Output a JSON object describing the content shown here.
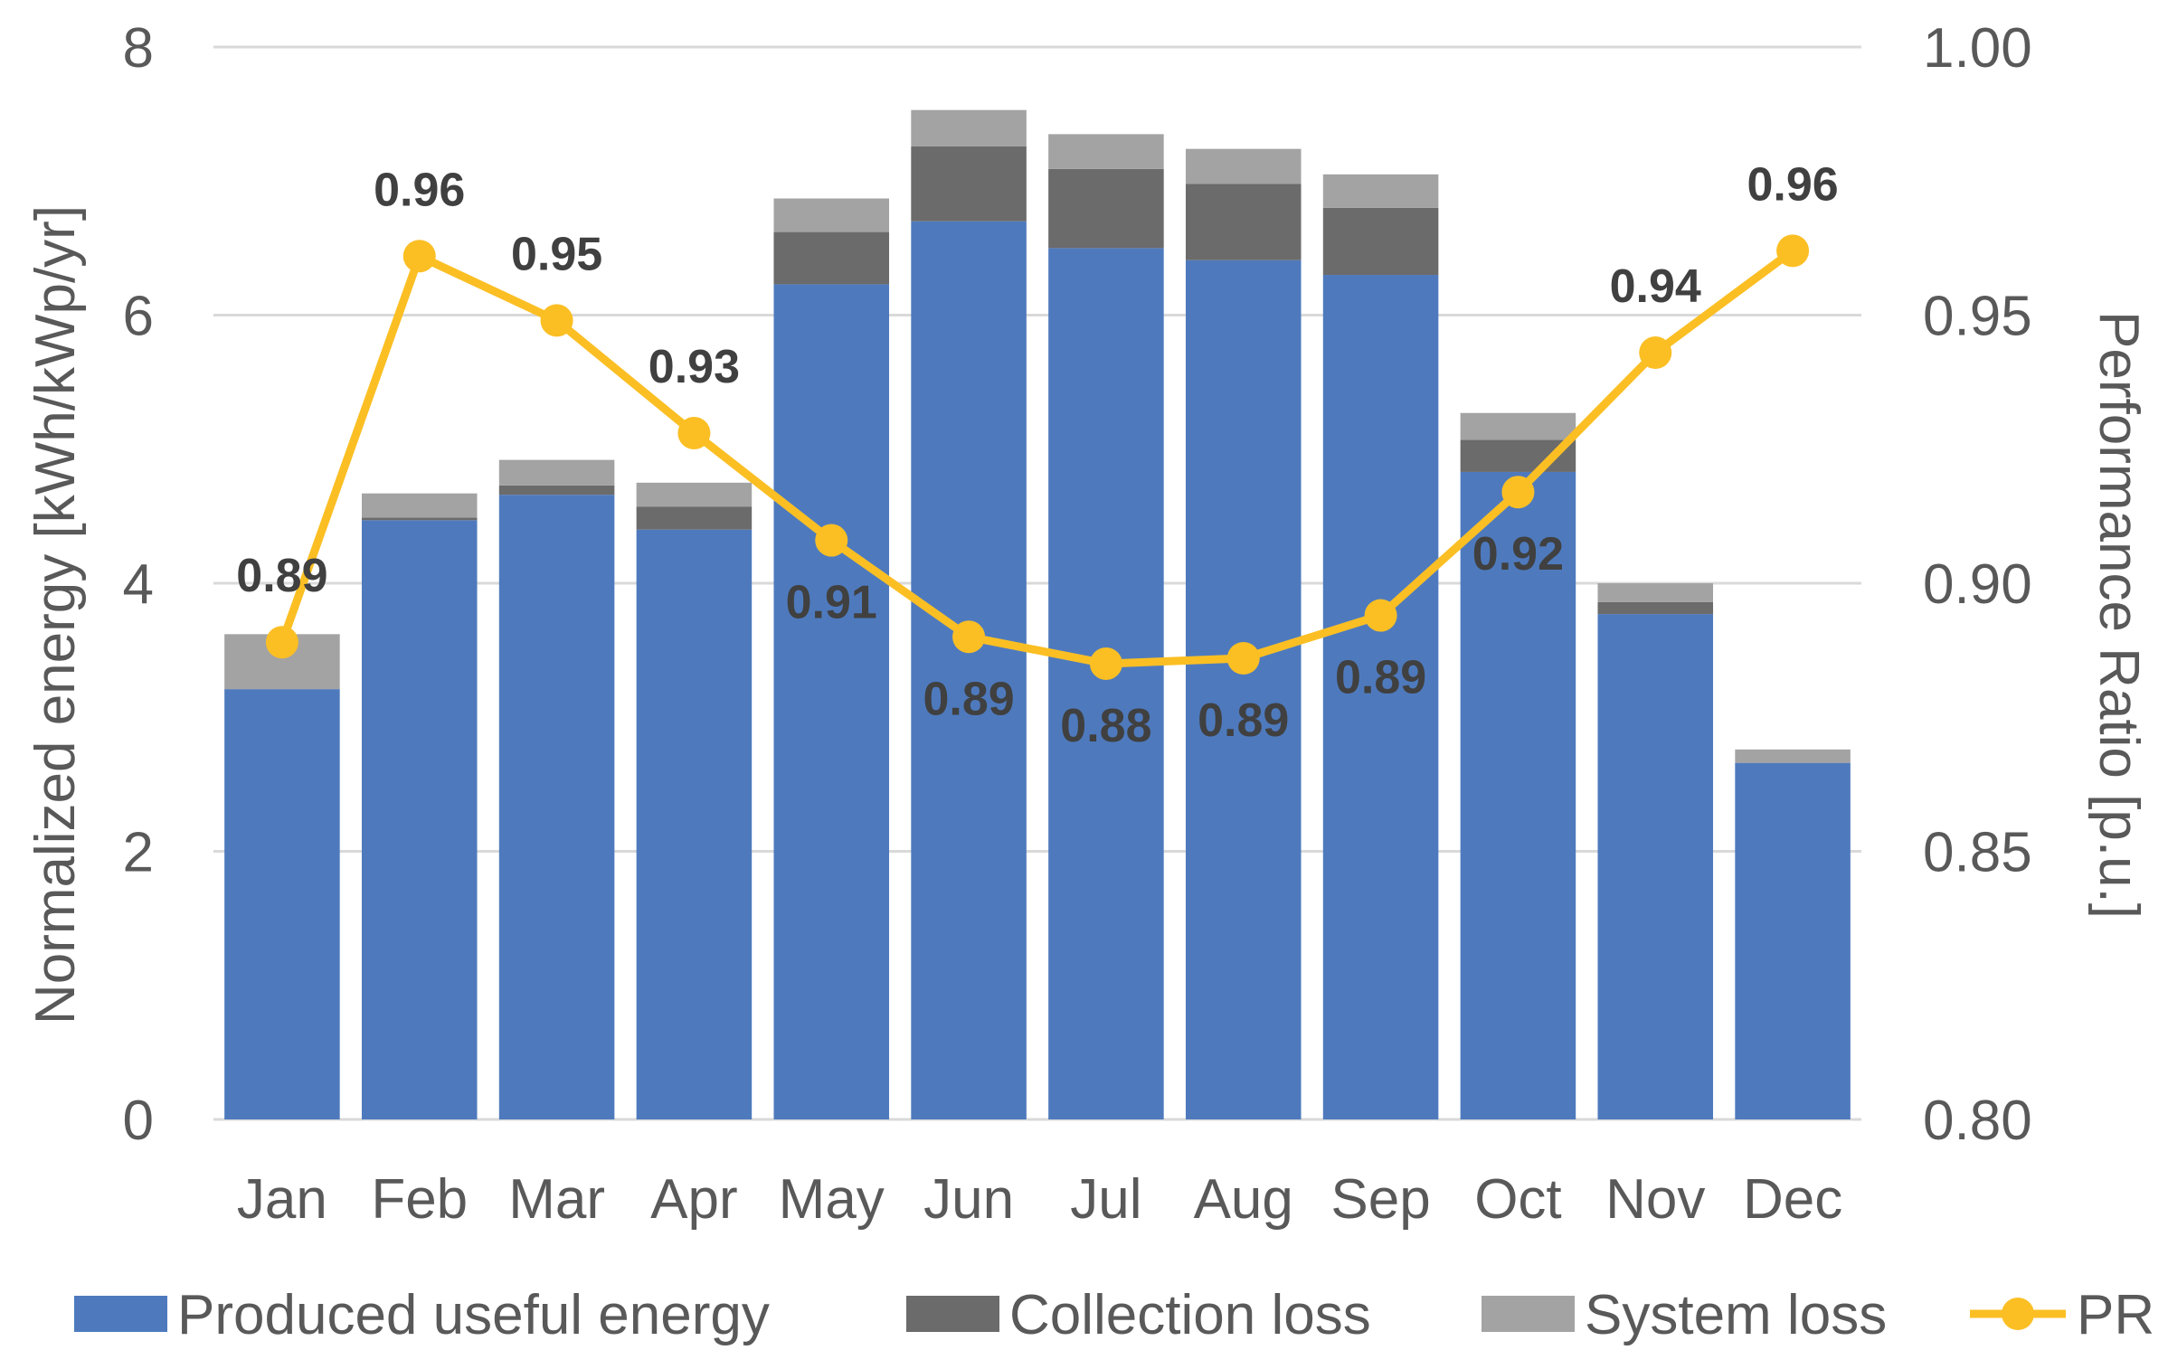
{
  "chart_data": {
    "type": "bar",
    "stacked": true,
    "categories": [
      "Jan",
      "Feb",
      "Mar",
      "Apr",
      "May",
      "Jun",
      "Jul",
      "Aug",
      "Sep",
      "Oct",
      "Nov",
      "Dec"
    ],
    "series": [
      {
        "name": "Produced useful energy",
        "axis": "left",
        "color": "#4e7abd",
        "values": [
          3.21,
          4.47,
          4.66,
          4.4,
          6.23,
          6.7,
          6.5,
          6.41,
          6.3,
          4.83,
          3.77,
          2.66
        ]
      },
      {
        "name": "Collection loss",
        "axis": "left",
        "color": "#6b6b6b",
        "values": [
          0.0,
          0.02,
          0.07,
          0.17,
          0.39,
          0.56,
          0.59,
          0.57,
          0.5,
          0.24,
          0.09,
          0.0
        ]
      },
      {
        "name": "System loss",
        "axis": "left",
        "color": "#a3a3a3",
        "values": [
          0.41,
          0.18,
          0.19,
          0.18,
          0.25,
          0.27,
          0.26,
          0.26,
          0.25,
          0.2,
          0.14,
          0.1
        ]
      },
      {
        "name": "PR",
        "type": "line",
        "axis": "right",
        "color": "#fbbf24",
        "values": [
          0.889,
          0.961,
          0.949,
          0.928,
          0.908,
          0.89,
          0.885,
          0.886,
          0.894,
          0.917,
          0.943,
          0.962
        ],
        "labels": [
          "0.89",
          "0.96",
          "0.95",
          "0.93",
          "0.91",
          "0.89",
          "0.88",
          "0.89",
          "0.89",
          "0.92",
          "0.94",
          "0.96"
        ]
      }
    ],
    "left_axis": {
      "label": "Normalized energy [kWh/kWp/yr]",
      "ylim": [
        0,
        8
      ],
      "ticks": [
        "0",
        "2",
        "4",
        "6",
        "8"
      ],
      "tick_values": [
        0,
        2,
        4,
        6,
        8
      ]
    },
    "right_axis": {
      "label": "Performance Ratio [p.u.]",
      "ylim": [
        0.8,
        1.0
      ],
      "ticks": [
        "0.80",
        "0.85",
        "0.90",
        "0.95",
        "1.00"
      ],
      "tick_values": [
        0.8,
        0.85,
        0.9,
        0.95,
        1.0
      ]
    },
    "grid": true,
    "legend_position": "bottom",
    "legend": [
      "Produced useful energy",
      "Collection loss",
      "System loss",
      "PR"
    ]
  },
  "colors": {
    "grid": "#d9d9d9",
    "text": "#595959",
    "label": "#404040"
  }
}
